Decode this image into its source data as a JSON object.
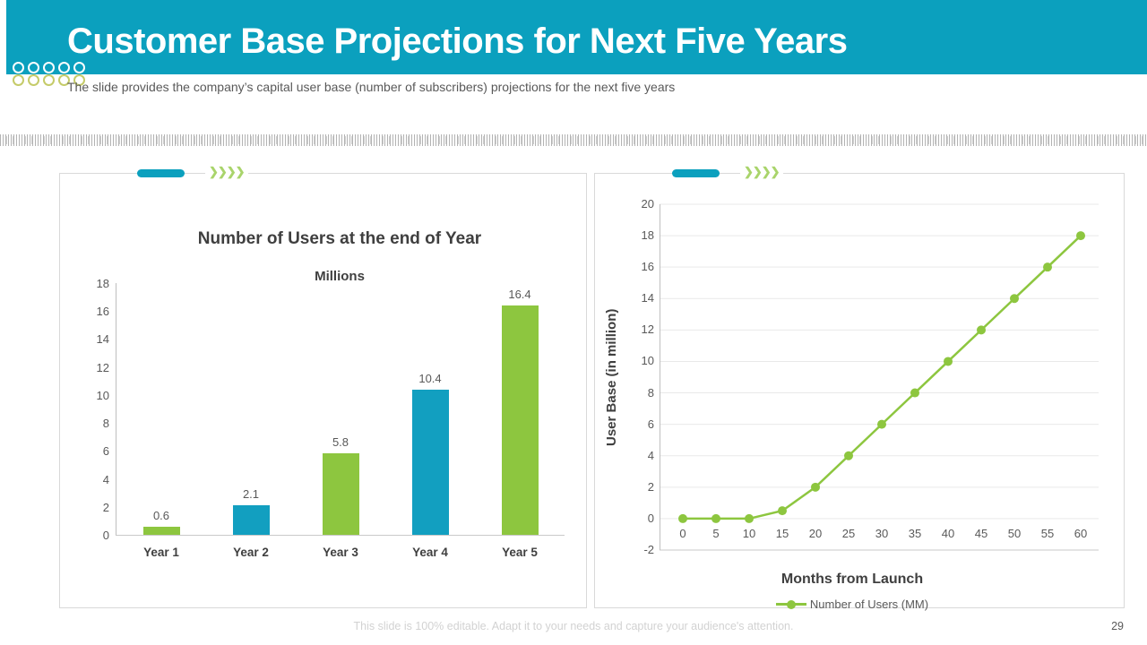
{
  "slide": {
    "title": "Customer Base Projections for Next Five Years",
    "subtitle": "The slide provides the company’s capital user base (number of subscribers) projections for the next five years",
    "footer": "This slide is 100% editable. Adapt it to your needs and capture your audience's attention.",
    "page_number": "29"
  },
  "icons": {
    "deco_chevrons": "❯❯❯❯"
  },
  "colors": {
    "header_teal": "#0BA0BE",
    "bar_green": "#8DC63F",
    "bar_blue": "#129FC0",
    "line_green": "#8DC63F",
    "title_white": "#FFFFFF",
    "text_dark": "#3F3F3F",
    "text_gray": "#595959",
    "footer_gray": "#D2D2D2",
    "grid_gray": "#E9E9E9",
    "axis_gray": "#BFBFBF"
  },
  "chart_data": [
    {
      "type": "bar",
      "title": "Number of Users at the end of Year",
      "units_label": "Millions",
      "categories": [
        "Year 1",
        "Year 2",
        "Year 3",
        "Year 4",
        "Year 5"
      ],
      "values": [
        0.6,
        2.1,
        5.8,
        10.4,
        16.4
      ],
      "value_labels": [
        "0.6",
        "2.1",
        "5.8",
        "10.4",
        "16.4"
      ],
      "bar_colors": [
        "#8DC63F",
        "#129FC0",
        "#8DC63F",
        "#129FC0",
        "#8DC63F"
      ],
      "ylim": [
        0,
        18
      ],
      "ytick_step": 2,
      "yticks": [
        0,
        2,
        4,
        6,
        8,
        10,
        12,
        14,
        16,
        18
      ],
      "grid": false,
      "legend_position": "none"
    },
    {
      "type": "line",
      "title": "",
      "xlabel": "Months from Launch",
      "ylabel": "User Base (in million)",
      "legend": "Number of Users (MM)",
      "x": [
        0,
        5,
        10,
        15,
        20,
        25,
        30,
        35,
        40,
        45,
        50,
        55,
        60
      ],
      "y": [
        0,
        0,
        0,
        0.5,
        2,
        4,
        6,
        8,
        10,
        12,
        14,
        16,
        18
      ],
      "xticks": [
        0,
        5,
        10,
        15,
        20,
        25,
        30,
        35,
        40,
        45,
        50,
        55,
        60
      ],
      "yticks": [
        -2,
        0,
        2,
        4,
        6,
        8,
        10,
        12,
        14,
        16,
        18,
        20
      ],
      "ylim": [
        -2,
        20
      ],
      "ytick_step": 2,
      "grid": true,
      "line_color": "#8DC63F",
      "legend_position": "bottom"
    }
  ]
}
